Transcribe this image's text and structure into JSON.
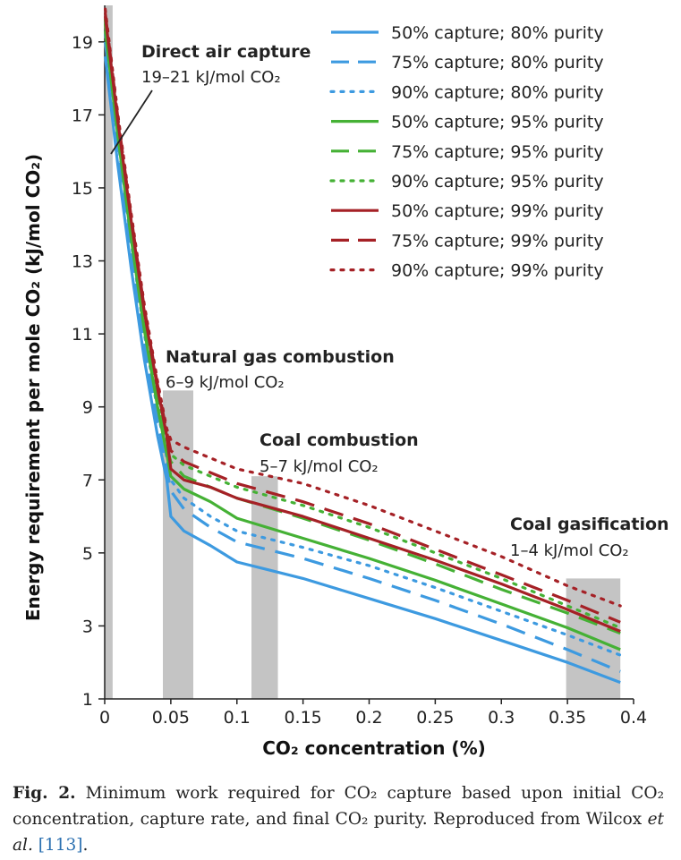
{
  "chart_data": {
    "type": "line",
    "title": "",
    "xlabel": "CO₂ concentration (%)",
    "ylabel": "Energy requirement per mole CO₂ (kJ/mol CO₂)",
    "xlim": [
      0,
      0.4
    ],
    "ylim": [
      1,
      20
    ],
    "x_ticks": [
      {
        "value": 0,
        "label": "0"
      },
      {
        "value": 0.05,
        "label": "0.05"
      },
      {
        "value": 0.1,
        "label": "0.1"
      },
      {
        "value": 0.15,
        "label": "0.15"
      },
      {
        "value": 0.2,
        "label": "0.2"
      },
      {
        "value": 0.25,
        "label": "0.25"
      },
      {
        "value": 0.3,
        "label": "0.3"
      },
      {
        "value": 0.35,
        "label": "0.35"
      },
      {
        "value": 0.4,
        "label": "0.4"
      }
    ],
    "y_ticks": [
      {
        "value": 1,
        "label": "1"
      },
      {
        "value": 3,
        "label": "3"
      },
      {
        "value": 5,
        "label": "5"
      },
      {
        "value": 7,
        "label": "7"
      },
      {
        "value": 9,
        "label": "9"
      },
      {
        "value": 11,
        "label": "11"
      },
      {
        "value": 13,
        "label": "13"
      },
      {
        "value": 15,
        "label": "15"
      },
      {
        "value": 17,
        "label": "17"
      },
      {
        "value": 19,
        "label": "19"
      }
    ],
    "grid": false,
    "legend_position": "top-right",
    "x": [
      0.0004,
      0.01,
      0.02,
      0.03,
      0.04,
      0.047,
      0.05,
      0.06,
      0.08,
      0.1,
      0.15,
      0.2,
      0.25,
      0.3,
      0.35,
      0.39
    ],
    "series": [
      {
        "name": "50% capture; 80% purity",
        "color": "#3d9ae0",
        "style": "solid",
        "values": [
          18.6,
          15.6,
          12.8,
          10.3,
          8.2,
          7.0,
          6.0,
          5.6,
          5.2,
          4.75,
          4.3,
          3.75,
          3.2,
          2.6,
          2.0,
          1.45
        ]
      },
      {
        "name": "75% capture; 80% purity",
        "color": "#3d9ae0",
        "style": "dashed",
        "values": [
          19.0,
          16.0,
          13.2,
          10.7,
          8.6,
          7.3,
          6.7,
          6.2,
          5.7,
          5.3,
          4.85,
          4.3,
          3.7,
          3.05,
          2.35,
          1.75
        ]
      },
      {
        "name": "90% capture; 80% purity",
        "color": "#3d9ae0",
        "style": "dotted",
        "values": [
          19.2,
          16.3,
          13.5,
          11.0,
          8.9,
          7.6,
          7.0,
          6.5,
          6.0,
          5.6,
          5.15,
          4.65,
          4.05,
          3.4,
          2.75,
          2.2
        ]
      },
      {
        "name": "50% capture; 95% purity",
        "color": "#45b135",
        "style": "solid",
        "values": [
          19.3,
          16.4,
          13.6,
          11.1,
          9.0,
          7.7,
          7.1,
          6.75,
          6.4,
          5.95,
          5.4,
          4.85,
          4.25,
          3.6,
          2.95,
          2.35
        ]
      },
      {
        "name": "75% capture; 95% purity",
        "color": "#45b135",
        "style": "dashed",
        "values": [
          19.5,
          16.6,
          13.8,
          11.3,
          9.2,
          7.9,
          7.5,
          7.1,
          6.8,
          6.5,
          5.95,
          5.35,
          4.7,
          4.0,
          3.35,
          2.8
        ]
      },
      {
        "name": "90% capture; 95% purity",
        "color": "#45b135",
        "style": "dotted",
        "values": [
          19.6,
          16.7,
          14.0,
          11.5,
          9.4,
          8.1,
          7.7,
          7.4,
          7.1,
          6.8,
          6.3,
          5.7,
          5.0,
          4.3,
          3.55,
          2.95
        ]
      },
      {
        "name": "50% capture; 99% purity",
        "color": "#a52126",
        "style": "solid",
        "values": [
          19.7,
          16.8,
          14.1,
          11.6,
          9.5,
          8.2,
          7.3,
          7.0,
          6.8,
          6.5,
          6.0,
          5.4,
          4.8,
          4.15,
          3.45,
          2.85
        ]
      },
      {
        "name": "75% capture; 99% purity",
        "color": "#a52126",
        "style": "dashed",
        "values": [
          19.8,
          16.9,
          14.2,
          11.7,
          9.6,
          8.3,
          7.8,
          7.5,
          7.2,
          6.9,
          6.4,
          5.8,
          5.1,
          4.4,
          3.7,
          3.1
        ]
      },
      {
        "name": "90% capture; 99% purity",
        "color": "#a52126",
        "style": "dotted",
        "values": [
          19.9,
          17.0,
          14.3,
          11.8,
          9.7,
          8.4,
          8.1,
          7.9,
          7.6,
          7.3,
          6.9,
          6.3,
          5.6,
          4.9,
          4.1,
          3.55
        ]
      }
    ],
    "regions": [
      {
        "name": "Direct air capture",
        "range": "19–21 kJ/mol CO₂",
        "x_start": 0.0,
        "x_end": 0.006,
        "y_top": 20,
        "color": "#c4c4c4"
      },
      {
        "name": "Natural gas combustion",
        "range": "6–9 kJ/mol CO₂",
        "x_start": 0.044,
        "x_end": 0.067,
        "y_top": 9.45,
        "color": "#c4c4c4"
      },
      {
        "name": "Coal combustion",
        "range": "5–7 kJ/mol CO₂",
        "x_start": 0.111,
        "x_end": 0.131,
        "y_top": 7.1,
        "color": "#c4c4c4"
      },
      {
        "name": "Coal gasification",
        "range": "1–4 kJ/mol CO₂",
        "x_start": 0.349,
        "x_end": 0.39,
        "y_top": 4.3,
        "color": "#c4c4c4"
      }
    ]
  },
  "caption": {
    "figure_label": "Fig. 2.",
    "text_before_authors": "Minimum work required for CO₂ capture based upon initial CO₂ concentration, capture rate, and final CO₂ purity. Reproduced from Wilcox",
    "authors_suffix": "et al.",
    "reference": "[113]",
    "end": "."
  }
}
